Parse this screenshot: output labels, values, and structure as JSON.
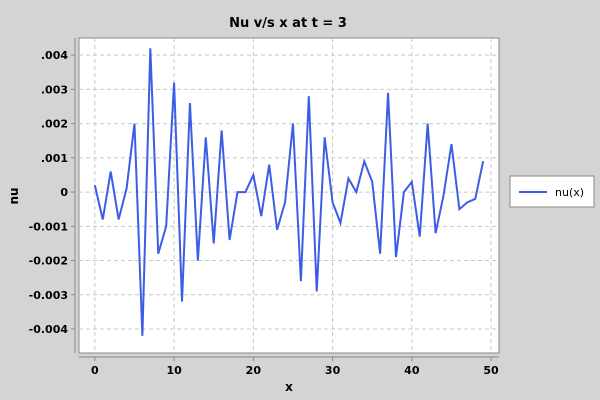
{
  "chart_data": {
    "type": "line",
    "title": "Nu v/s x at t = 3",
    "xlabel": "x",
    "ylabel": "nu",
    "xlim": [
      -2,
      51
    ],
    "ylim": [
      -0.0047,
      0.0045
    ],
    "grid": true,
    "legend_position": "right",
    "x_ticks": [
      0,
      10,
      20,
      30,
      40,
      50
    ],
    "x_tick_labels": [
      "0",
      "10",
      "20",
      "30",
      "40",
      "50"
    ],
    "y_ticks": [
      -0.004,
      -0.003,
      -0.002,
      -0.001,
      0,
      0.001,
      0.002,
      0.003,
      0.004
    ],
    "y_tick_labels": [
      "-0.004",
      "-0.003",
      "-0.002",
      "-0.001",
      "0",
      ".001",
      ".002",
      ".003",
      ".004"
    ],
    "series": [
      {
        "name": "nu(x)",
        "color": "#3c5ee6",
        "x": [
          0,
          1,
          2,
          3,
          4,
          5,
          6,
          7,
          8,
          9,
          10,
          11,
          12,
          13,
          14,
          15,
          16,
          17,
          18,
          19,
          20,
          21,
          22,
          23,
          24,
          25,
          26,
          27,
          28,
          29,
          30,
          31,
          32,
          33,
          34,
          35,
          36,
          37,
          38,
          39,
          40,
          41,
          42,
          43,
          44,
          45,
          46,
          47,
          48,
          49
        ],
        "values": [
          0.0002,
          -0.0008,
          0.0006,
          -0.0008,
          0.0001,
          0.002,
          -0.0042,
          0.0042,
          -0.0018,
          -0.001,
          0.0032,
          -0.0032,
          0.0026,
          -0.002,
          0.0016,
          -0.0015,
          0.0018,
          -0.0014,
          0.0,
          0.0,
          0.0005,
          -0.0007,
          0.0008,
          -0.0011,
          -0.0003,
          0.002,
          -0.0026,
          0.0028,
          -0.0029,
          0.0016,
          -0.0003,
          -0.0009,
          0.0004,
          0.0,
          0.0009,
          0.0003,
          -0.0018,
          0.0029,
          -0.0019,
          0.0,
          0.0003,
          -0.0013,
          0.002,
          -0.0012,
          -0.0001,
          0.0014,
          -0.0005,
          -0.0003,
          -0.0002,
          0.0009
        ]
      }
    ]
  }
}
